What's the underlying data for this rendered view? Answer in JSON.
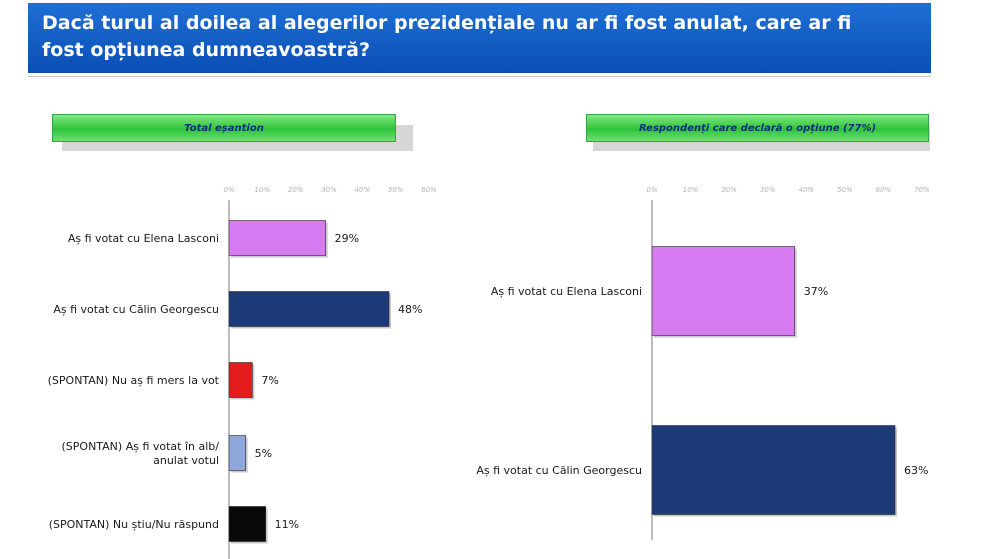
{
  "header": {
    "title_line1": "Dacă turul al doilea al alegerilor prezidențiale nu ar fi fost anulat, care ar fi",
    "title_line2": "fost opțiunea dumneavoastră?"
  },
  "panels": [
    {
      "label": "Total eșantion"
    },
    {
      "label": "Respondenți care declară o opțiune (77%)"
    }
  ],
  "chart_data": [
    {
      "type": "bar",
      "orientation": "horizontal",
      "title": "Total eșantion",
      "categories": [
        [
          "Aș fi votat cu Elena Lasconi"
        ],
        [
          "Aș fi votat cu Călin Georgescu"
        ],
        [
          "(SPONTAN) Nu aș fi mers la vot"
        ],
        [
          "(SPONTAN) Aș fi votat în alb/",
          "anulat votul"
        ],
        [
          "(SPONTAN) Nu știu/Nu răspund"
        ]
      ],
      "values": [
        29,
        48,
        7,
        5,
        11
      ],
      "value_labels": [
        "29%",
        "48%",
        "7%",
        "5%",
        "11%"
      ],
      "colors": [
        "#d77bf2",
        "#1c3a78",
        "#e41c1c",
        "#8fa8dc",
        "#080808"
      ],
      "xlim": [
        0,
        60
      ],
      "ticks": [
        "0%",
        "10%",
        "20%",
        "30%",
        "40%",
        "50%",
        "60%"
      ],
      "grid": false
    },
    {
      "type": "bar",
      "orientation": "horizontal",
      "title": "Respondenți care declară o opțiune (77%)",
      "categories": [
        [
          "Aș fi votat cu Elena Lasconi"
        ],
        [
          "Aș fi votat cu Călin Georgescu"
        ]
      ],
      "values": [
        37,
        63
      ],
      "value_labels": [
        "37%",
        "63%"
      ],
      "colors": [
        "#d77bf2",
        "#1c3a78"
      ],
      "xlim": [
        0,
        70
      ],
      "ticks": [
        "0%",
        "10%",
        "20%",
        "30%",
        "40%",
        "50%",
        "60%",
        "70%"
      ],
      "grid": false
    }
  ]
}
